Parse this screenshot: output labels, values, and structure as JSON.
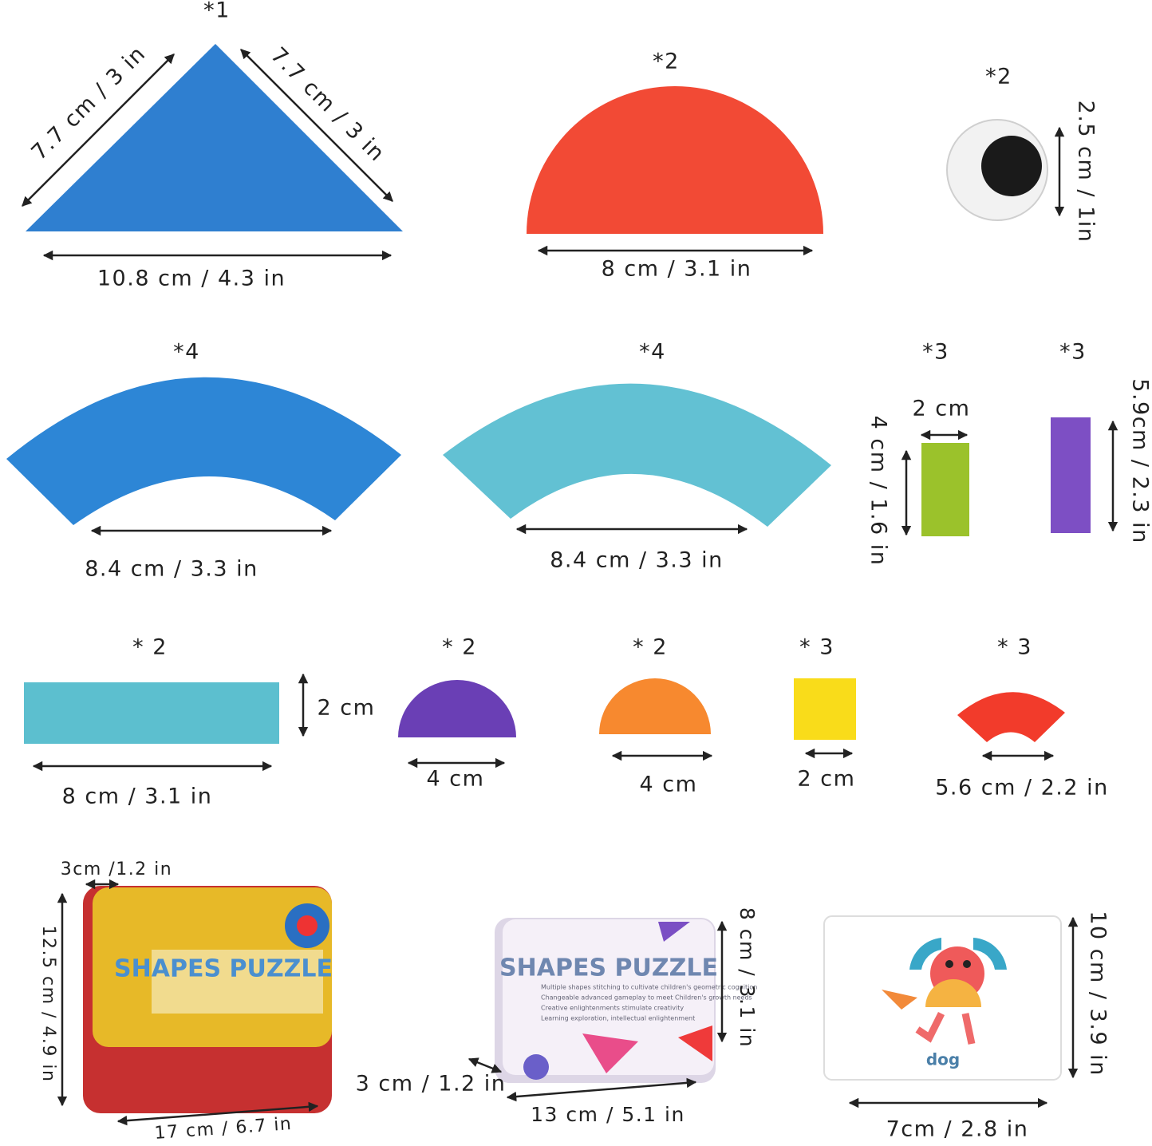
{
  "items": [
    {
      "shape": "large triangle",
      "count": "*1",
      "dimensions": [
        "7.7 cm / 3 in",
        "7.7 cm / 3 in",
        "10.8 cm / 4.3 in"
      ]
    },
    {
      "shape": "large semicircle",
      "count": "*2",
      "dimensions": [
        "8 cm / 3.1 in"
      ]
    },
    {
      "shape": "googly eye",
      "count": "*2",
      "dimensions": [
        "2.5 cm /  1in"
      ]
    },
    {
      "shape": "blue arc",
      "count": "*4",
      "dimensions": [
        "8.4 cm / 3.3 in"
      ]
    },
    {
      "shape": "teal arc",
      "count": "*4",
      "dimensions": [
        "8.4 cm / 3.3 in"
      ]
    },
    {
      "shape": "green rectangle",
      "count": "*3",
      "dimensions": [
        "2 cm",
        "4 cm / 1.6 in"
      ]
    },
    {
      "shape": "purple rectangle",
      "count": "*3",
      "dimensions": [
        "5.9cm / 2.3 in"
      ]
    },
    {
      "shape": "long rectangle",
      "count": "* 2",
      "dimensions": [
        "2 cm",
        "8 cm / 3.1 in"
      ]
    },
    {
      "shape": "purple semicircle",
      "count": "* 2",
      "dimensions": [
        "4 cm"
      ]
    },
    {
      "shape": "orange semicircle",
      "count": "* 2",
      "dimensions": [
        "4 cm"
      ]
    },
    {
      "shape": "yellow square",
      "count": "* 3",
      "dimensions": [
        "2 cm"
      ]
    },
    {
      "shape": "small arc",
      "count": "* 3",
      "dimensions": [
        "5.6 cm / 2.2 in"
      ]
    }
  ],
  "boxes": [
    {
      "title": "SHAPES PUZZLE",
      "dimensions": [
        "3cm /1.2 in",
        "12.5 cm / 4.9 in",
        "17 cm / 6.7 in"
      ]
    },
    {
      "title": "SHAPES PUZZLE",
      "dimensions": [
        "8 cm / 3.1 in",
        "3 cm / 1.2 in",
        "13 cm / 5.1 in"
      ],
      "lines": [
        "Multiple shapes stitching to cultivate children's geometric cognition",
        "Changeable advanced gameplay to meet Children's growth needs",
        "Creative enlightenments stimulate creativity",
        "Learning exploration, intellectual enlightenment"
      ]
    },
    {
      "caption": "dog",
      "dimensions": [
        "10 cm / 3.9 in",
        "7cm / 2.8 in"
      ]
    }
  ]
}
